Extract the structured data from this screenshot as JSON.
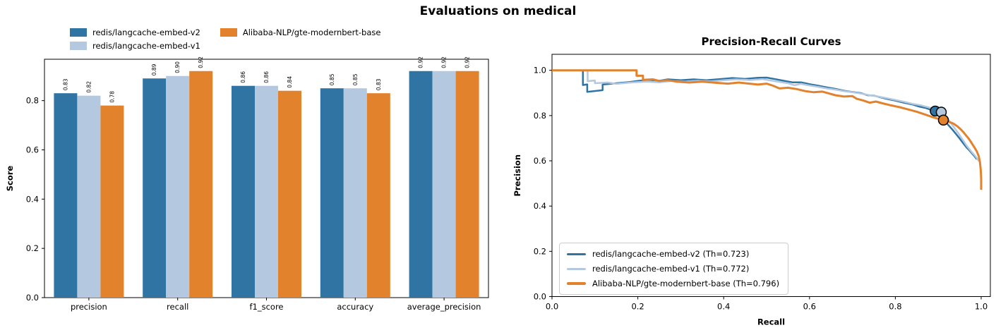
{
  "title": "Evaluations on medical",
  "models": [
    {
      "name": "redis/langcache-embed-v2",
      "color": "#2f74a3"
    },
    {
      "name": "redis/langcache-embed-v1",
      "color": "#b4c8e0"
    },
    {
      "name": "Alibaba-NLP/gte-modernbert-base",
      "color": "#e2822d"
    }
  ],
  "chart_data": [
    {
      "type": "bar",
      "title": "",
      "xlabel": "",
      "ylabel": "Score",
      "ylim": [
        0,
        0.968
      ],
      "yticks": [
        "0.0",
        "0.2",
        "0.4",
        "0.6",
        "0.8"
      ],
      "grid": false,
      "legend_position": "top-left, 2 columns, outside axes",
      "categories": [
        "precision",
        "recall",
        "f1_score",
        "accuracy",
        "average_precision"
      ],
      "series": [
        {
          "name": "redis/langcache-embed-v2",
          "color": "#2f74a3",
          "values": [
            "0.83",
            "0.89",
            "0.86",
            "0.85",
            "0.92"
          ]
        },
        {
          "name": "redis/langcache-embed-v1",
          "color": "#b4c8e0",
          "values": [
            "0.82",
            "0.90",
            "0.86",
            "0.85",
            "0.92"
          ]
        },
        {
          "name": "Alibaba-NLP/gte-modernbert-base",
          "color": "#e2822d",
          "values": [
            "0.78",
            "0.92",
            "0.84",
            "0.83",
            "0.92"
          ]
        }
      ]
    },
    {
      "type": "line",
      "title": "Precision-Recall Curves",
      "xlabel": "Recall",
      "ylabel": "Precision",
      "xlim": [
        0,
        1.021
      ],
      "ylim": [
        0,
        1.068
      ],
      "xticks": [
        "0.0",
        "0.2",
        "0.4",
        "0.6",
        "0.8",
        "1.0"
      ],
      "yticks": [
        "0.0",
        "0.2",
        "0.4",
        "0.6",
        "0.8",
        "1.0"
      ],
      "grid": false,
      "legend_position": "lower left, inside axes",
      "legend": [
        {
          "label": "redis/langcache-embed-v2 (Th=0.723)",
          "color": "#2f74a3"
        },
        {
          "label": "redis/langcache-embed-v1 (Th=0.772)",
          "color": "#b4c8e0"
        },
        {
          "label": "Alibaba-NLP/gte-modernbert-base (Th=0.796)",
          "color": "#e2822d"
        }
      ],
      "series": [
        {
          "name": "redis/langcache-embed-v2",
          "color": "#2f74a3",
          "threshold_point": [
            0.893,
            0.82
          ],
          "points": [
            [
              0,
              1
            ],
            [
              0.072,
              1
            ],
            [
              0.072,
              0.935
            ],
            [
              0.082,
              0.938
            ],
            [
              0.082,
              0.905
            ],
            [
              0.118,
              0.912
            ],
            [
              0.118,
              0.937
            ],
            [
              0.15,
              0.943
            ],
            [
              0.18,
              0.948
            ],
            [
              0.2,
              0.953
            ],
            [
              0.225,
              0.958
            ],
            [
              0.25,
              0.954
            ],
            [
              0.27,
              0.96
            ],
            [
              0.3,
              0.956
            ],
            [
              0.33,
              0.96
            ],
            [
              0.36,
              0.956
            ],
            [
              0.39,
              0.961
            ],
            [
              0.42,
              0.966
            ],
            [
              0.45,
              0.962
            ],
            [
              0.48,
              0.967
            ],
            [
              0.5,
              0.968
            ],
            [
              0.52,
              0.961
            ],
            [
              0.54,
              0.954
            ],
            [
              0.56,
              0.947
            ],
            [
              0.58,
              0.947
            ],
            [
              0.6,
              0.939
            ],
            [
              0.62,
              0.932
            ],
            [
              0.64,
              0.925
            ],
            [
              0.66,
              0.918
            ],
            [
              0.68,
              0.91
            ],
            [
              0.7,
              0.904
            ],
            [
              0.72,
              0.899
            ],
            [
              0.735,
              0.89
            ],
            [
              0.75,
              0.888
            ],
            [
              0.765,
              0.881
            ],
            [
              0.78,
              0.874
            ],
            [
              0.8,
              0.866
            ],
            [
              0.82,
              0.857
            ],
            [
              0.84,
              0.849
            ],
            [
              0.855,
              0.84
            ],
            [
              0.87,
              0.834
            ],
            [
              0.885,
              0.824
            ],
            [
              0.893,
              0.82
            ],
            [
              0.9,
              0.807
            ],
            [
              0.908,
              0.792
            ],
            [
              0.916,
              0.774
            ],
            [
              0.924,
              0.757
            ],
            [
              0.932,
              0.74
            ],
            [
              0.94,
              0.722
            ],
            [
              0.948,
              0.703
            ],
            [
              0.954,
              0.688
            ],
            [
              0.96,
              0.673
            ],
            [
              0.966,
              0.659
            ],
            [
              0.972,
              0.647
            ],
            [
              0.978,
              0.634
            ],
            [
              0.984,
              0.621
            ],
            [
              0.99,
              0.607
            ]
          ]
        },
        {
          "name": "redis/langcache-embed-v1",
          "color": "#b4c8e0",
          "threshold_point": [
            0.907,
            0.815
          ],
          "points": [
            [
              0,
              1
            ],
            [
              0.083,
              1
            ],
            [
              0.083,
              0.952
            ],
            [
              0.1,
              0.955
            ],
            [
              0.1,
              0.943
            ],
            [
              0.13,
              0.946
            ],
            [
              0.15,
              0.94
            ],
            [
              0.17,
              0.944
            ],
            [
              0.19,
              0.947
            ],
            [
              0.22,
              0.95
            ],
            [
              0.25,
              0.947
            ],
            [
              0.28,
              0.953
            ],
            [
              0.31,
              0.95
            ],
            [
              0.34,
              0.954
            ],
            [
              0.37,
              0.951
            ],
            [
              0.4,
              0.956
            ],
            [
              0.43,
              0.96
            ],
            [
              0.46,
              0.957
            ],
            [
              0.49,
              0.961
            ],
            [
              0.51,
              0.955
            ],
            [
              0.53,
              0.949
            ],
            [
              0.55,
              0.943
            ],
            [
              0.565,
              0.934
            ],
            [
              0.58,
              0.94
            ],
            [
              0.6,
              0.933
            ],
            [
              0.62,
              0.927
            ],
            [
              0.64,
              0.92
            ],
            [
              0.66,
              0.915
            ],
            [
              0.68,
              0.908
            ],
            [
              0.7,
              0.903
            ],
            [
              0.72,
              0.897
            ],
            [
              0.74,
              0.89
            ],
            [
              0.76,
              0.884
            ],
            [
              0.78,
              0.877
            ],
            [
              0.8,
              0.869
            ],
            [
              0.82,
              0.861
            ],
            [
              0.84,
              0.852
            ],
            [
              0.86,
              0.845
            ],
            [
              0.878,
              0.836
            ],
            [
              0.893,
              0.827
            ],
            [
              0.907,
              0.815
            ],
            [
              0.915,
              0.8
            ],
            [
              0.923,
              0.783
            ],
            [
              0.931,
              0.763
            ],
            [
              0.939,
              0.742
            ],
            [
              0.947,
              0.721
            ],
            [
              0.953,
              0.704
            ],
            [
              0.959,
              0.687
            ],
            [
              0.965,
              0.67
            ],
            [
              0.971,
              0.655
            ],
            [
              0.977,
              0.641
            ],
            [
              0.983,
              0.628
            ],
            [
              0.989,
              0.614
            ],
            [
              0.995,
              0.598
            ]
          ]
        },
        {
          "name": "Alibaba-NLP/gte-modernbert-base",
          "color": "#e2822d",
          "threshold_point": [
            0.912,
            0.78
          ],
          "points": [
            [
              0,
              1
            ],
            [
              0.197,
              1
            ],
            [
              0.197,
              0.976
            ],
            [
              0.212,
              0.976
            ],
            [
              0.212,
              0.958
            ],
            [
              0.235,
              0.96
            ],
            [
              0.25,
              0.953
            ],
            [
              0.27,
              0.956
            ],
            [
              0.29,
              0.95
            ],
            [
              0.32,
              0.946
            ],
            [
              0.35,
              0.95
            ],
            [
              0.38,
              0.945
            ],
            [
              0.41,
              0.941
            ],
            [
              0.435,
              0.946
            ],
            [
              0.46,
              0.941
            ],
            [
              0.48,
              0.937
            ],
            [
              0.5,
              0.941
            ],
            [
              0.515,
              0.932
            ],
            [
              0.53,
              0.92
            ],
            [
              0.55,
              0.923
            ],
            [
              0.57,
              0.917
            ],
            [
              0.59,
              0.908
            ],
            [
              0.61,
              0.903
            ],
            [
              0.63,
              0.906
            ],
            [
              0.645,
              0.898
            ],
            [
              0.66,
              0.89
            ],
            [
              0.68,
              0.884
            ],
            [
              0.7,
              0.886
            ],
            [
              0.71,
              0.874
            ],
            [
              0.725,
              0.867
            ],
            [
              0.74,
              0.857
            ],
            [
              0.755,
              0.862
            ],
            [
              0.77,
              0.854
            ],
            [
              0.79,
              0.845
            ],
            [
              0.81,
              0.837
            ],
            [
              0.83,
              0.827
            ],
            [
              0.85,
              0.817
            ],
            [
              0.87,
              0.804
            ],
            [
              0.89,
              0.791
            ],
            [
              0.912,
              0.78
            ],
            [
              0.925,
              0.772
            ],
            [
              0.935,
              0.765
            ],
            [
              0.945,
              0.752
            ],
            [
              0.952,
              0.74
            ],
            [
              0.958,
              0.728
            ],
            [
              0.964,
              0.714
            ],
            [
              0.97,
              0.7
            ],
            [
              0.975,
              0.687
            ],
            [
              0.98,
              0.672
            ],
            [
              0.985,
              0.657
            ],
            [
              0.99,
              0.641
            ],
            [
              0.994,
              0.622
            ],
            [
              0.997,
              0.595
            ],
            [
              0.999,
              0.56
            ],
            [
              1,
              0.52
            ],
            [
              1,
              0.472
            ]
          ]
        }
      ]
    }
  ]
}
